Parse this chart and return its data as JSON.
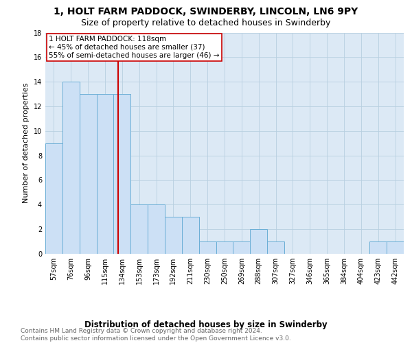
{
  "title": "1, HOLT FARM PADDOCK, SWINDERBY, LINCOLN, LN6 9PY",
  "subtitle": "Size of property relative to detached houses in Swinderby",
  "xlabel": "Distribution of detached houses by size in Swinderby",
  "ylabel": "Number of detached properties",
  "bar_labels": [
    "57sqm",
    "76sqm",
    "96sqm",
    "115sqm",
    "134sqm",
    "153sqm",
    "173sqm",
    "192sqm",
    "211sqm",
    "230sqm",
    "250sqm",
    "269sqm",
    "288sqm",
    "307sqm",
    "327sqm",
    "346sqm",
    "365sqm",
    "384sqm",
    "404sqm",
    "423sqm",
    "442sqm"
  ],
  "bar_values": [
    9,
    14,
    13,
    13,
    13,
    4,
    4,
    3,
    3,
    1,
    1,
    1,
    2,
    1,
    0,
    0,
    0,
    0,
    0,
    1,
    1
  ],
  "bar_color": "#cce0f5",
  "bar_edgecolor": "#6aaed6",
  "vline_x": 3.77,
  "vline_color": "#cc0000",
  "annotation_text": "1 HOLT FARM PADDOCK: 118sqm\n← 45% of detached houses are smaller (37)\n55% of semi-detached houses are larger (46) →",
  "annotation_box_color": "#ffffff",
  "annotation_box_edgecolor": "#cc0000",
  "ylim": [
    0,
    18
  ],
  "yticks": [
    0,
    2,
    4,
    6,
    8,
    10,
    12,
    14,
    16,
    18
  ],
  "background_color": "#ffffff",
  "axes_facecolor": "#dce9f5",
  "grid_color": "#b8cfe0",
  "footer_text": "Contains HM Land Registry data © Crown copyright and database right 2024.\nContains public sector information licensed under the Open Government Licence v3.0.",
  "title_fontsize": 10,
  "subtitle_fontsize": 9,
  "xlabel_fontsize": 8.5,
  "ylabel_fontsize": 8,
  "tick_fontsize": 7,
  "annotation_fontsize": 7.5,
  "footer_fontsize": 6.5
}
